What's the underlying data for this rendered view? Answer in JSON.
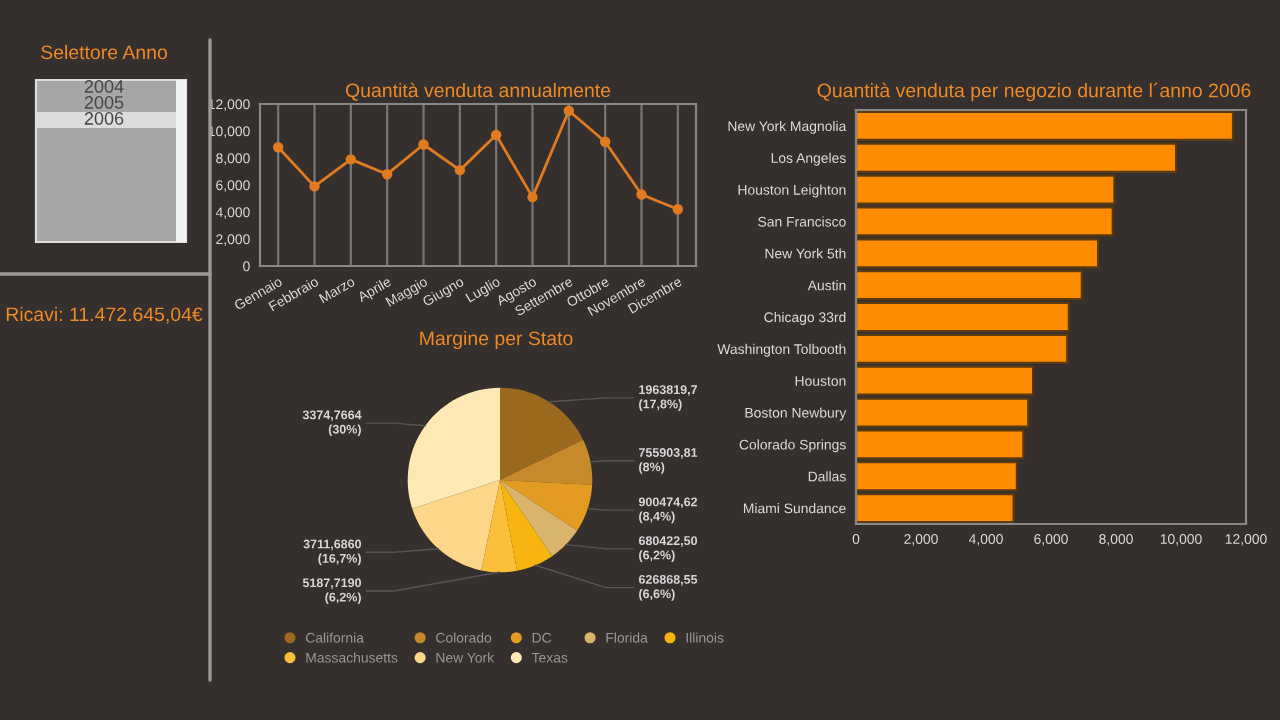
{
  "chart_data": [
    {
      "type": "other",
      "title": "Selettore Anno",
      "annotations": [
        "2004",
        "2005",
        "2006",
        "Ricavi: 11.472.645,04€"
      ]
    },
    {
      "type": "line",
      "title": "Quantità venduta annualmente",
      "categories": [
        "Gennaio",
        "Febbraio",
        "Marzo",
        "Aprile",
        "Maggio",
        "Giugno",
        "Luglio",
        "Agosto",
        "Settembre",
        "Ottobre",
        "Novembre",
        "Dicembre"
      ],
      "series": [
        {
          "color": "#e07b20",
          "values": [
            8800,
            5900,
            7900,
            6800,
            9000,
            7100,
            9700,
            5100,
            11500,
            9200,
            5300,
            4200
          ]
        }
      ],
      "ylim": [
        0,
        12000
      ],
      "yticks": [
        {
          "value": 0,
          "label": "0"
        },
        {
          "value": 2000,
          "label": "2,000"
        },
        {
          "value": 4000,
          "label": "4,000"
        },
        {
          "value": 6000,
          "label": "6,000"
        },
        {
          "value": 8000,
          "label": "8,000"
        },
        {
          "value": 10000,
          "label": "10,000"
        },
        {
          "value": 12000,
          "label": "12,000"
        }
      ],
      "grid": "x",
      "marker": "circle"
    },
    {
      "type": "pie",
      "title": "Margine per Stato",
      "categories": [
        "California",
        "Colorado",
        "DC",
        "Florida",
        "Illinois",
        "Massachusetts",
        "New York",
        "Texas"
      ],
      "values": [
        17.8,
        8,
        8.4,
        6.2,
        6.6,
        6.2,
        16.7,
        30
      ],
      "value_labels": [
        "1963819,7\n(17,8%)",
        "755903,81\n(8%)",
        "900474,62\n(8,4%)",
        "680422,50\n(6,2%)",
        "626868,55\n(6,6%)",
        "5187,7190\n(6,2%)",
        "3711,6860\n(16,7%)",
        "3374,7664\n(30%)"
      ],
      "colors": [
        "#9b6a1e",
        "#c78a2b",
        "#e39b22",
        "#d9b56b",
        "#f7b40f",
        "#fbbf3a",
        "#fdd68a",
        "#fee9b4"
      ],
      "legend": "bottom"
    },
    {
      "type": "bar",
      "title": "Quantità venduta per negozio durante l´anno 2006",
      "orientation": "horizontal",
      "categories": [
        "New York Magnolia",
        "Los Angeles",
        "Houston Leighton",
        "San Francisco",
        "New York 5th",
        "Austin",
        "Chicago 33rd",
        "Washington Tolbooth",
        "Houston",
        "Boston Newbury",
        "Colorado Springs",
        "Dallas",
        "Miami Sundance"
      ],
      "series": [
        {
          "color": "#ff8c00",
          "values": [
            11600,
            9850,
            7950,
            7900,
            7450,
            6950,
            6550,
            6500,
            5450,
            5300,
            5150,
            4950,
            4850
          ]
        }
      ],
      "xlim": [
        0,
        12000
      ],
      "xticks": [
        {
          "value": 0,
          "label": "0"
        },
        {
          "value": 2000,
          "label": "2,000"
        },
        {
          "value": 4000,
          "label": "4,000"
        },
        {
          "value": 6000,
          "label": "6,000"
        },
        {
          "value": 8000,
          "label": "8,000"
        },
        {
          "value": 10000,
          "label": "10,000"
        },
        {
          "value": 12000,
          "label": "12,000"
        }
      ]
    }
  ]
}
